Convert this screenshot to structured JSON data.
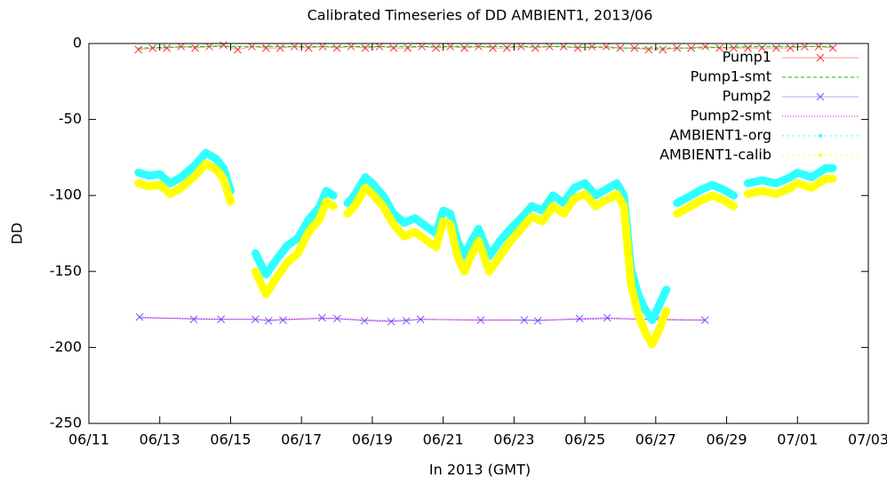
{
  "chart_data": {
    "type": "line",
    "title": "Calibrated Timeseries of DD AMBIENT1, 2013/06",
    "x_label": "In 2013 (GMT)",
    "y_label": "DD",
    "xlim": [
      11,
      33
    ],
    "xticks": [
      {
        "value": 11,
        "label": "06/11"
      },
      {
        "value": 13,
        "label": "06/13"
      },
      {
        "value": 15,
        "label": "06/15"
      },
      {
        "value": 17,
        "label": "06/17"
      },
      {
        "value": 19,
        "label": "06/19"
      },
      {
        "value": 21,
        "label": "06/21"
      },
      {
        "value": 23,
        "label": "06/23"
      },
      {
        "value": 25,
        "label": "06/25"
      },
      {
        "value": 27,
        "label": "06/27"
      },
      {
        "value": 29,
        "label": "06/29"
      },
      {
        "value": 31,
        "label": "07/01"
      },
      {
        "value": 33,
        "label": "07/03"
      }
    ],
    "ylim": [
      -250,
      0
    ],
    "yticks": [
      -250,
      -200,
      -150,
      -100,
      -50,
      0
    ],
    "legend": "top-right",
    "series": [
      {
        "name": "Pump1",
        "color": "#ff3030",
        "marker": "x",
        "x": [
          12.4,
          12.8,
          13.2,
          13.6,
          14.0,
          14.4,
          14.8,
          15.2,
          15.6,
          16.0,
          16.4,
          16.8,
          17.2,
          17.6,
          18.0,
          18.4,
          18.8,
          19.2,
          19.6,
          20.0,
          20.4,
          20.8,
          21.2,
          21.6,
          22.0,
          22.4,
          22.8,
          23.2,
          23.6,
          24.0,
          24.4,
          24.8,
          25.2,
          25.6,
          26.0,
          26.4,
          26.8,
          27.2,
          27.6,
          28.0,
          28.4,
          28.8,
          29.2,
          29.6,
          30.0,
          30.4,
          30.8,
          31.2,
          31.6,
          32.0
        ],
        "values": [
          -4,
          -3,
          -3,
          -2,
          -3,
          -2,
          -1,
          -4,
          -2,
          -3,
          -3,
          -2,
          -3,
          -2,
          -3,
          -2,
          -3,
          -2,
          -3,
          -3,
          -2,
          -3,
          -2,
          -3,
          -2,
          -3,
          -3,
          -2,
          -3,
          -2,
          -2,
          -3,
          -2,
          -2,
          -3,
          -3,
          -4,
          -4,
          -3,
          -3,
          -2,
          -3,
          -3,
          -3,
          -3,
          -3,
          -3,
          -2,
          -2,
          -3
        ]
      },
      {
        "name": "Pump1-smt",
        "color": "#00c000",
        "dash": "4,3",
        "x": [
          12.4,
          14.0,
          16.0,
          18.0,
          20.0,
          22.0,
          24.0,
          26.0,
          27.0,
          28.0,
          30.0,
          32.0
        ],
        "values": [
          -3,
          -2,
          -2,
          -2,
          -2,
          -2,
          -2,
          -3,
          -3,
          -3,
          -2,
          -2
        ]
      },
      {
        "name": "Pump2",
        "color": "#6060ff",
        "marker": "x",
        "x": [
          12.43,
          13.96,
          14.73,
          15.7,
          16.07,
          16.48,
          17.58,
          18.01,
          18.78,
          19.53,
          19.96,
          20.36,
          22.06,
          23.29,
          23.67,
          24.85,
          25.63,
          27.16,
          28.39
        ],
        "values": [
          -180,
          -181.5,
          -181.5,
          -181.5,
          -182.5,
          -182,
          -180.5,
          -181,
          -182.5,
          -183,
          -182.5,
          -181.5,
          -182,
          -182,
          -182.5,
          -181,
          -180.5,
          -182,
          -182
        ]
      },
      {
        "name": "Pump2-smt",
        "color": "#d000d0",
        "dash": "1,2",
        "x": [
          12.43,
          13.96,
          14.73,
          15.7,
          16.07,
          16.48,
          17.58,
          18.01,
          18.78,
          19.53,
          19.96,
          20.36,
          22.06,
          23.29,
          23.67,
          24.85,
          25.63,
          27.16,
          28.39
        ],
        "values": [
          -180.5,
          -181,
          -181.5,
          -181.5,
          -182,
          -181.5,
          -181,
          -181,
          -182,
          -182.5,
          -182,
          -181.5,
          -182,
          -182,
          -182,
          -181.5,
          -181,
          -181.5,
          -182
        ]
      },
      {
        "name": "AMBIENT1-org",
        "color": "#30ffff",
        "marker": "*",
        "x": [
          12.4,
          12.7,
          13.0,
          13.3,
          13.6,
          14.0,
          14.3,
          14.6,
          14.8,
          15.0,
          15.3,
          15.7,
          16.0,
          16.3,
          16.6,
          16.9,
          17.2,
          17.5,
          17.7,
          17.9,
          18.1,
          18.3,
          18.5,
          18.8,
          19.0,
          19.3,
          19.6,
          19.9,
          20.2,
          20.5,
          20.8,
          21.0,
          21.2,
          21.4,
          21.6,
          21.8,
          22.0,
          22.3,
          22.6,
          22.9,
          23.2,
          23.5,
          23.8,
          24.1,
          24.4,
          24.7,
          25.0,
          25.3,
          25.6,
          25.9,
          26.1,
          26.3,
          26.5,
          26.7,
          26.9,
          27.1,
          27.3,
          27.45,
          27.6,
          28.0,
          28.3,
          28.6,
          28.9,
          29.2,
          29.4,
          29.6,
          30.0,
          30.4,
          30.8,
          31.0,
          31.4,
          31.8,
          32.0
        ],
        "values": [
          -85,
          -87,
          -86,
          -92,
          -88,
          -80,
          -72,
          -76,
          -82,
          -97,
          null,
          -138,
          -152,
          -142,
          -133,
          -128,
          -116,
          -108,
          -97,
          -100,
          null,
          -105,
          -100,
          -88,
          -92,
          -100,
          -112,
          -118,
          -115,
          -120,
          -125,
          -110,
          -112,
          -130,
          -140,
          -130,
          -122,
          -140,
          -130,
          -122,
          -115,
          -107,
          -110,
          -100,
          -105,
          -95,
          -92,
          -100,
          -96,
          -92,
          -100,
          -148,
          -165,
          -175,
          -182,
          -172,
          -162,
          null,
          -105,
          -100,
          -96,
          -93,
          -96,
          -100,
          null,
          -92,
          -90,
          -92,
          -88,
          -85,
          -88,
          -82,
          -82
        ]
      },
      {
        "name": "AMBIENT1-calib",
        "color": "#ffff00",
        "marker": "*",
        "x": [
          12.4,
          12.7,
          13.0,
          13.3,
          13.6,
          14.0,
          14.3,
          14.6,
          14.8,
          15.0,
          15.3,
          15.7,
          16.0,
          16.3,
          16.6,
          16.9,
          17.2,
          17.5,
          17.7,
          17.9,
          18.1,
          18.3,
          18.5,
          18.8,
          19.0,
          19.3,
          19.6,
          19.9,
          20.2,
          20.5,
          20.8,
          21.0,
          21.2,
          21.4,
          21.6,
          21.8,
          22.0,
          22.3,
          22.6,
          22.9,
          23.2,
          23.5,
          23.8,
          24.1,
          24.4,
          24.7,
          25.0,
          25.3,
          25.6,
          25.9,
          26.1,
          26.3,
          26.5,
          26.7,
          26.9,
          27.1,
          27.3,
          27.45,
          27.6,
          28.0,
          28.3,
          28.6,
          28.9,
          29.2,
          29.4,
          29.6,
          30.0,
          30.4,
          30.8,
          31.0,
          31.4,
          31.8,
          32.0
        ],
        "values": [
          -92,
          -94,
          -93,
          -99,
          -95,
          -87,
          -79,
          -83,
          -89,
          -104,
          null,
          -150,
          -165,
          -154,
          -144,
          -138,
          -124,
          -116,
          -104,
          -107,
          null,
          -112,
          -107,
          -95,
          -99,
          -107,
          -119,
          -127,
          -124,
          -129,
          -134,
          -117,
          -119,
          -140,
          -150,
          -139,
          -130,
          -150,
          -140,
          -130,
          -122,
          -114,
          -117,
          -107,
          -112,
          -102,
          -99,
          -107,
          -103,
          -99,
          -107,
          -158,
          -178,
          -190,
          -198,
          -188,
          -176,
          null,
          -112,
          -107,
          -103,
          -100,
          -103,
          -107,
          null,
          -99,
          -97,
          -99,
          -95,
          -92,
          -95,
          -89,
          -89
        ]
      }
    ]
  }
}
